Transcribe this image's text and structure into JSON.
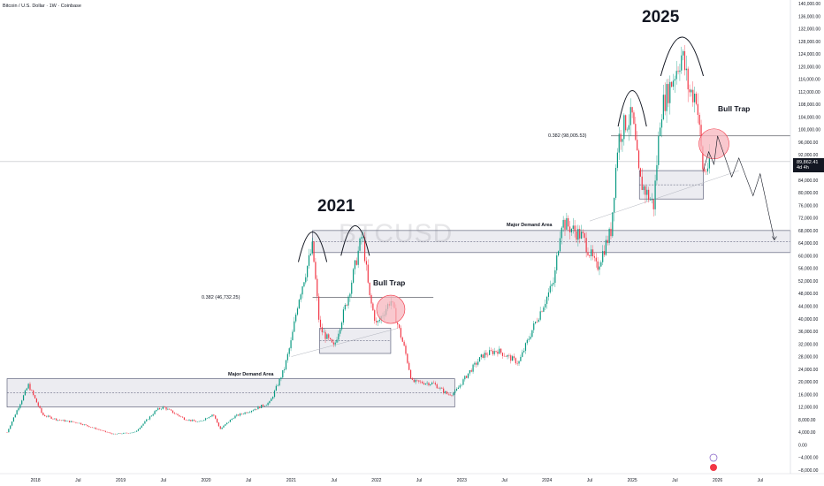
{
  "header": {
    "title": "Bitcoin / U.S. Dollar · 1W · Coinbase"
  },
  "watermark": "BTCUSD",
  "current_price": {
    "value": "89,862.41",
    "countdown": "4d 4h"
  },
  "annotations": {
    "year_2021": "2021",
    "year_2025": "2025",
    "bull_trap_1": "Bull Trap",
    "bull_trap_2": "Bull Trap",
    "demand_1": "Major Demand Area",
    "demand_2": "Major Demand Area",
    "fib_1": "0.382 (46,732.25)",
    "fib_2": "0.382 (98,005.53)"
  },
  "colors": {
    "up": "#089981",
    "down": "#f23645",
    "zone_fill": "#e5e6ec",
    "zone_border": "#4a4e6a",
    "circle_fill": "#f7b5bd",
    "circle_stroke": "#f23645",
    "text": "#131722",
    "axis_text": "#131722"
  },
  "chart_data": {
    "type": "candlestick",
    "y_axis": {
      "ticks": [
        "140,000.00",
        "136,000.00",
        "132,000.00",
        "128,000.00",
        "124,000.00",
        "120,000.00",
        "116,000.00",
        "112,000.00",
        "108,000.00",
        "104,000.00",
        "100,000.00",
        "96,000.00",
        "92,000.00",
        "88,000.00",
        "84,000.00",
        "80,000.00",
        "76,000.00",
        "72,000.00",
        "68,000.00",
        "64,000.00",
        "60,000.00",
        "56,000.00",
        "52,000.00",
        "48,000.00",
        "44,000.00",
        "40,000.00",
        "36,000.00",
        "32,000.00",
        "28,000.00",
        "24,000.00",
        "20,000.00",
        "16,000.00",
        "12,000.00",
        "8,000.00",
        "4,000.00",
        "0.00",
        "−4,000.00",
        "−8,000.00"
      ],
      "range": [
        -8000,
        140000
      ],
      "position": "right"
    },
    "x_axis": {
      "ticks": [
        "2018",
        "Jul",
        "2019",
        "Jul",
        "2020",
        "Jul",
        "2021",
        "Jul",
        "2022",
        "Jul",
        "2023",
        "Jul",
        "2024",
        "Jul",
        "2025",
        "Jul",
        "2026",
        "Jul"
      ],
      "range": [
        "2017-09",
        "2026-12"
      ]
    },
    "price_path": [
      [
        "2017-09",
        4000
      ],
      [
        "2017-12",
        19000
      ],
      [
        "2018-02",
        9500
      ],
      [
        "2018-04",
        8000
      ],
      [
        "2018-07",
        7000
      ],
      [
        "2018-11",
        4000
      ],
      [
        "2018-12",
        3400
      ],
      [
        "2019-03",
        4000
      ],
      [
        "2019-06",
        11000
      ],
      [
        "2019-07",
        12000
      ],
      [
        "2019-10",
        8200
      ],
      [
        "2019-12",
        7200
      ],
      [
        "2020-02",
        9800
      ],
      [
        "2020-03",
        5000
      ],
      [
        "2020-05",
        9000
      ],
      [
        "2020-08",
        11500
      ],
      [
        "2020-10",
        13500
      ],
      [
        "2020-12",
        24000
      ],
      [
        "2021-01",
        33000
      ],
      [
        "2021-02",
        46000
      ],
      [
        "2021-04",
        63000
      ],
      [
        "2021-05",
        37000
      ],
      [
        "2021-07",
        31000
      ],
      [
        "2021-09",
        47000
      ],
      [
        "2021-11",
        67000
      ],
      [
        "2021-12",
        47000
      ],
      [
        "2022-01",
        38000
      ],
      [
        "2022-03",
        46000
      ],
      [
        "2022-05",
        30000
      ],
      [
        "2022-06",
        20000
      ],
      [
        "2022-09",
        19500
      ],
      [
        "2022-11",
        16000
      ],
      [
        "2022-12",
        16500
      ],
      [
        "2023-02",
        23000
      ],
      [
        "2023-04",
        28500
      ],
      [
        "2023-06",
        30000
      ],
      [
        "2023-09",
        26000
      ],
      [
        "2023-11",
        37000
      ],
      [
        "2023-12",
        42000
      ],
      [
        "2024-02",
        52000
      ],
      [
        "2024-03",
        71000
      ],
      [
        "2024-06",
        66000
      ],
      [
        "2024-08",
        56000
      ],
      [
        "2024-10",
        68000
      ],
      [
        "2024-11",
        97000
      ],
      [
        "2024-12",
        102000
      ],
      [
        "2025-01",
        104000
      ],
      [
        "2025-02",
        84000
      ],
      [
        "2025-04",
        76000
      ],
      [
        "2025-05",
        106000
      ],
      [
        "2025-07",
        118000
      ],
      [
        "2025-08",
        124000
      ],
      [
        "2025-09",
        112000
      ],
      [
        "2025-10",
        111000
      ],
      [
        "2025-11",
        86000
      ],
      [
        "2025-12",
        89862
      ]
    ],
    "zones": [
      {
        "name": "Major Demand Area",
        "x": [
          "2017-09",
          "2022-12"
        ],
        "y": [
          12000,
          21000
        ]
      },
      {
        "name": "Major Demand Area",
        "x": [
          "2021-04",
          "2026-12"
        ],
        "y": [
          61000,
          68000
        ]
      },
      {
        "x": [
          "2021-05",
          "2022-03"
        ],
        "y": [
          29000,
          37000
        ]
      },
      {
        "x": [
          "2025-02",
          "2025-11"
        ],
        "y": [
          78000,
          87000
        ]
      }
    ],
    "fib_lines": [
      {
        "label": "0.382 (46,732.25)",
        "y": 46732.25,
        "x": [
          "2021-04",
          "2022-09"
        ]
      },
      {
        "label": "0.382 (98,005.53)",
        "y": 98005.53,
        "x": [
          "2024-10",
          "2026-12"
        ]
      }
    ],
    "projection": [
      [
        "2025-11",
        87000
      ],
      [
        "2025-12",
        93000
      ],
      [
        "2025-12",
        89000
      ],
      [
        "2026-01",
        98000
      ],
      [
        "2026-03",
        85000
      ],
      [
        "2026-04",
        91000
      ],
      [
        "2026-06",
        79000
      ],
      [
        "2026-07",
        86000
      ],
      [
        "2026-09",
        65000
      ]
    ],
    "current_price_line": 89862.41
  }
}
